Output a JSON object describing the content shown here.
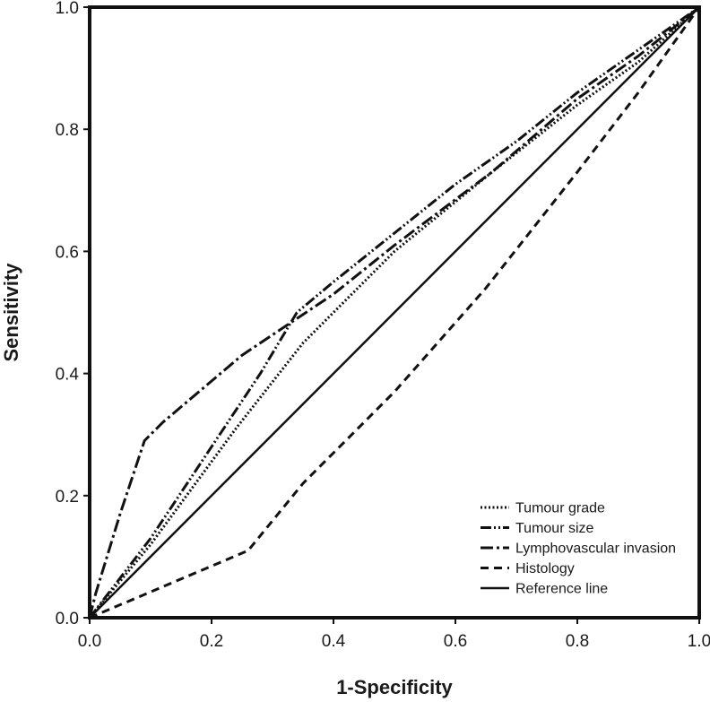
{
  "chart_data": {
    "type": "line",
    "title": "",
    "xlabel": "1-Specificity",
    "ylabel": "Sensitivity",
    "xlim": [
      0.0,
      1.0
    ],
    "ylim": [
      0.0,
      1.0
    ],
    "xticks": [
      "0.0",
      "0.2",
      "0.4",
      "0.6",
      "0.8",
      "1.0"
    ],
    "yticks": [
      "0.0",
      "0.2",
      "0.4",
      "0.6",
      "0.8",
      "1.0"
    ],
    "grid": false,
    "legend_position": "bottom-right",
    "series": [
      {
        "name": "Tumour grade",
        "style": "dotted",
        "points": [
          [
            0.0,
            0.0
          ],
          [
            0.1,
            0.12
          ],
          [
            0.24,
            0.31
          ],
          [
            0.35,
            0.45
          ],
          [
            0.5,
            0.6
          ],
          [
            0.66,
            0.73
          ],
          [
            0.8,
            0.84
          ],
          [
            0.9,
            0.91
          ],
          [
            1.0,
            1.0
          ]
        ]
      },
      {
        "name": "Tumour size",
        "style": "dash-dot-dot",
        "points": [
          [
            0.0,
            0.0
          ],
          [
            0.1,
            0.13
          ],
          [
            0.2,
            0.28
          ],
          [
            0.28,
            0.4
          ],
          [
            0.34,
            0.5
          ],
          [
            0.4,
            0.55
          ],
          [
            0.5,
            0.63
          ],
          [
            0.6,
            0.71
          ],
          [
            0.7,
            0.78
          ],
          [
            0.8,
            0.86
          ],
          [
            0.9,
            0.93
          ],
          [
            1.0,
            1.0
          ]
        ]
      },
      {
        "name": "Lymphovascular invasion",
        "style": "dash-dot",
        "points": [
          [
            0.0,
            0.0
          ],
          [
            0.01,
            0.04
          ],
          [
            0.05,
            0.17
          ],
          [
            0.09,
            0.29
          ],
          [
            0.12,
            0.32
          ],
          [
            0.25,
            0.43
          ],
          [
            0.4,
            0.53
          ],
          [
            0.5,
            0.61
          ],
          [
            0.66,
            0.73
          ],
          [
            0.8,
            0.85
          ],
          [
            0.9,
            0.92
          ],
          [
            1.0,
            1.0
          ]
        ]
      },
      {
        "name": "Histology",
        "style": "dashed",
        "points": [
          [
            0.0,
            0.0
          ],
          [
            0.26,
            0.11
          ],
          [
            0.35,
            0.22
          ],
          [
            0.5,
            0.37
          ],
          [
            0.65,
            0.54
          ],
          [
            0.8,
            0.73
          ],
          [
            0.9,
            0.86
          ],
          [
            1.0,
            1.0
          ]
        ]
      },
      {
        "name": "Reference line",
        "style": "solid",
        "points": [
          [
            0.0,
            0.0
          ],
          [
            1.0,
            1.0
          ]
        ]
      }
    ]
  }
}
